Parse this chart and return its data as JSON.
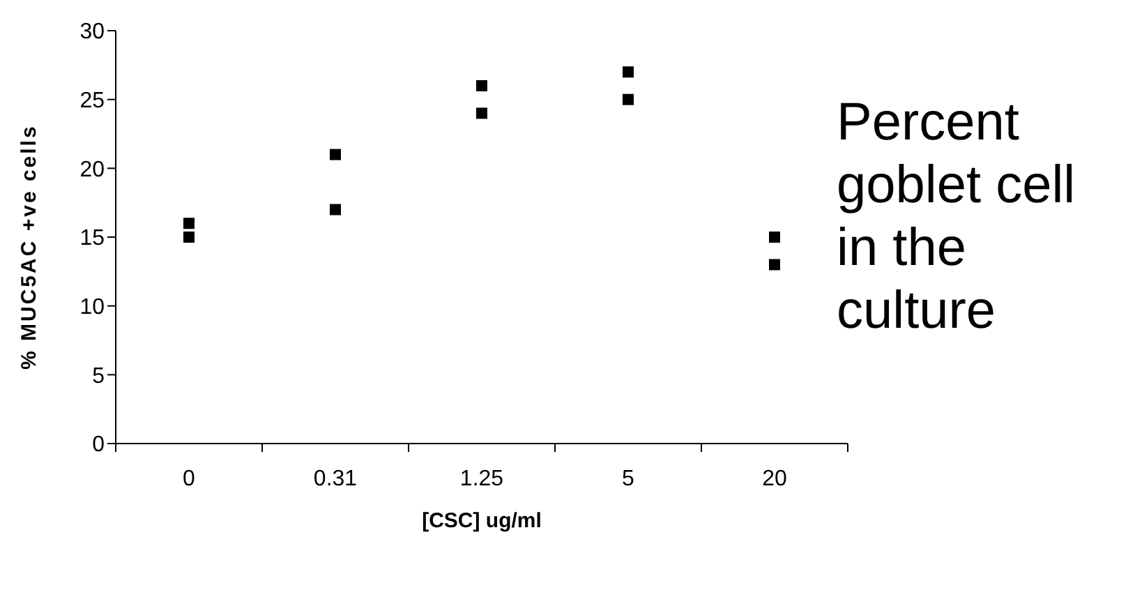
{
  "chart_data": {
    "type": "scatter",
    "categories": [
      "0",
      "0.31",
      "1.25",
      "5",
      "20"
    ],
    "series": [
      {
        "color": "#000000",
        "x": [
          "0",
          "0",
          "0.31",
          "0.31",
          "1.25",
          "1.25",
          "5",
          "5",
          "20",
          "20"
        ],
        "values": [
          16,
          15,
          21,
          17,
          26,
          24,
          27,
          25,
          15,
          13
        ]
      }
    ],
    "xlabel": "[CSC] ug/ml",
    "ylabel": "% MUC5AC +ve cells",
    "ylim": [
      0,
      30
    ],
    "yticks": [
      0,
      5,
      10,
      15,
      20,
      25,
      30
    ],
    "marker": "square",
    "grid": false,
    "annotations": [
      "Percent goblet cell in the culture"
    ]
  }
}
